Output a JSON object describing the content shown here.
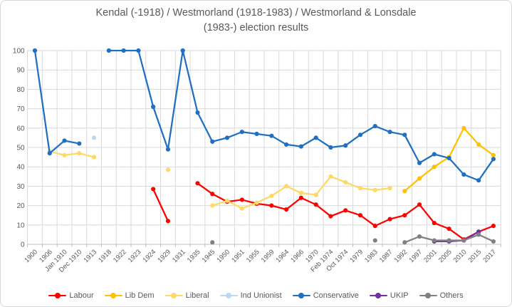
{
  "title": {
    "line1": "Kendal (-1918) / Westmorland (1918-1983) / Westmorland & Lonsdale",
    "line2": "(1983-) election results"
  },
  "chart_data": {
    "type": "line",
    "title": "Kendal (-1918) / Westmorland (1918-1983) / Westmorland & Lonsdale (1983-) election results",
    "xlabel": "",
    "ylabel": "",
    "grid": true,
    "legend_position": "bottom",
    "y_axis": {
      "min": 0,
      "max": 100,
      "step": 10,
      "tick_labels": [
        "0",
        "10",
        "20",
        "30",
        "40",
        "50",
        "60",
        "70",
        "80",
        "90",
        "100"
      ]
    },
    "categories": [
      "1900",
      "1906",
      "Jan 1910",
      "Dec 1910",
      "1913",
      "1918",
      "1922",
      "1923",
      "1924",
      "1929",
      "1931",
      "1935",
      "1945",
      "1950",
      "1951",
      "1955",
      "1959",
      "1964",
      "1966",
      "1970",
      "Feb 1974",
      "Oct 1974",
      "1979",
      "1983",
      "1987",
      "1992",
      "1997",
      "2001",
      "2005",
      "2010",
      "2015",
      "2017"
    ],
    "series": [
      {
        "name": "Labour",
        "color": "#ff0000",
        "values": [
          null,
          null,
          null,
          null,
          null,
          null,
          null,
          null,
          28.5,
          12,
          null,
          31.5,
          26,
          22,
          23,
          21,
          20,
          18,
          24,
          20.5,
          14.5,
          17.5,
          15,
          9.5,
          13,
          15,
          20.5,
          11,
          8,
          2.5,
          6.5,
          9.5
        ]
      },
      {
        "name": "Lib Dem",
        "color": "#ffc000",
        "values": [
          null,
          null,
          null,
          null,
          null,
          null,
          null,
          null,
          null,
          null,
          null,
          null,
          null,
          null,
          null,
          null,
          null,
          null,
          null,
          null,
          null,
          null,
          null,
          null,
          null,
          27.5,
          34,
          40,
          45,
          60,
          51.5,
          46
        ]
      },
      {
        "name": "Liberal",
        "color": "#ffd966",
        "values": [
          null,
          48,
          46,
          47,
          45,
          null,
          null,
          null,
          null,
          38.5,
          null,
          null,
          20,
          22.5,
          18.5,
          21.5,
          25,
          30,
          26.5,
          25.5,
          35,
          32,
          29,
          28,
          29,
          null,
          null,
          null,
          null,
          null,
          null,
          null
        ]
      },
      {
        "name": "Ind Unionist",
        "color": "#bdd7ee",
        "values": [
          null,
          null,
          null,
          null,
          55,
          null,
          null,
          null,
          null,
          null,
          null,
          null,
          null,
          null,
          null,
          null,
          null,
          null,
          null,
          null,
          null,
          null,
          null,
          null,
          null,
          null,
          null,
          null,
          null,
          null,
          null,
          null
        ]
      },
      {
        "name": "Conservative",
        "color": "#1f70c1",
        "values": [
          100,
          47,
          53.5,
          52,
          null,
          100,
          100,
          100,
          71,
          49,
          100,
          68,
          53,
          55,
          58,
          57,
          56,
          51.5,
          50.5,
          55,
          50,
          51,
          56.5,
          61,
          58,
          56.5,
          42,
          46.5,
          44.5,
          36,
          33,
          44
        ]
      },
      {
        "name": "UKIP",
        "color": "#7030a0",
        "values": [
          null,
          null,
          null,
          null,
          null,
          null,
          null,
          null,
          null,
          null,
          null,
          null,
          null,
          null,
          null,
          null,
          null,
          null,
          null,
          null,
          null,
          null,
          null,
          null,
          null,
          null,
          null,
          1.5,
          1.5,
          2,
          6.5,
          null
        ]
      },
      {
        "name": "Others",
        "color": "#808080",
        "values": [
          null,
          null,
          null,
          null,
          null,
          null,
          null,
          null,
          null,
          null,
          null,
          null,
          1,
          null,
          null,
          null,
          null,
          null,
          null,
          null,
          null,
          null,
          null,
          2,
          null,
          1,
          4,
          2,
          2,
          2,
          5,
          1.5
        ]
      }
    ]
  },
  "colors": {
    "gridline": "#d9d9d9",
    "axis": "#bfbfbf",
    "text": "#595959"
  }
}
